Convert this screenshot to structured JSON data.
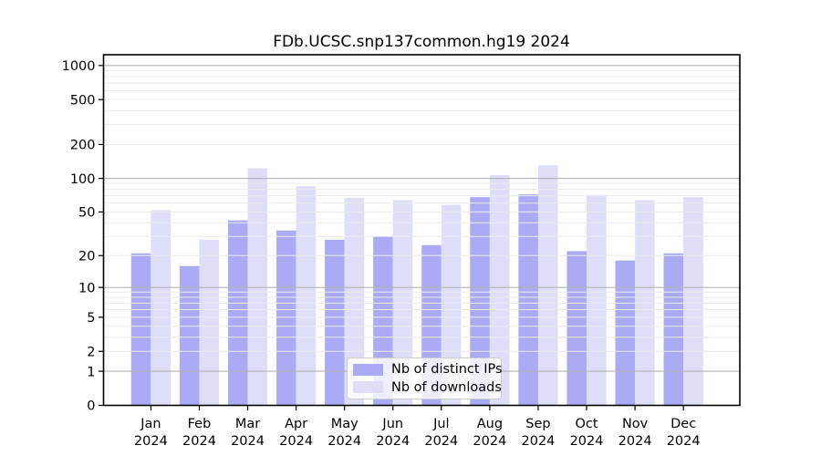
{
  "chart_data": {
    "type": "bar",
    "title": "FDb.UCSC.snp137common.hg19 2024",
    "categories": [
      "Jan 2024",
      "Feb 2024",
      "Mar 2024",
      "Apr 2024",
      "May 2024",
      "Jun 2024",
      "Jul 2024",
      "Aug 2024",
      "Sep 2024",
      "Oct 2024",
      "Nov 2024",
      "Dec 2024"
    ],
    "series": [
      {
        "name": "Nb of distinct IPs",
        "color": "#ababf5",
        "values": [
          21,
          16,
          42,
          34,
          28,
          30,
          25,
          68,
          72,
          22,
          18,
          21
        ]
      },
      {
        "name": "Nb of downloads",
        "color": "#dedef8",
        "values": [
          52,
          28,
          123,
          85,
          67,
          64,
          58,
          107,
          131,
          71,
          64,
          68
        ]
      }
    ],
    "xlabel": "",
    "ylabel": "",
    "yscale": "log1p",
    "yticks": [
      0,
      1,
      2,
      5,
      10,
      20,
      50,
      100,
      200,
      500,
      1000
    ],
    "ylim": [
      0,
      1200
    ],
    "grid": "major and minor horizontal gridlines, drawn over bars",
    "legend_position": "lower center"
  },
  "colors": {
    "grid_major": "#b3b3b3",
    "grid_minor": "#eaeaea",
    "axis": "#000000",
    "tick_label": "#000000",
    "legend_border": "#cccccc"
  }
}
